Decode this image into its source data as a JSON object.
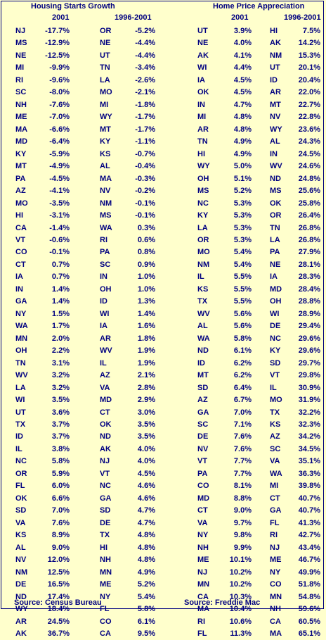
{
  "titles": {
    "housing": "Housing Starts Growth",
    "price": "Home Price Appreciation"
  },
  "subheaders": {
    "h2001": "2001",
    "h9601": "1996-2001",
    "p2001": "2001",
    "p9601": "1996-2001"
  },
  "sources": {
    "housing": "Source: Census Bureau",
    "price": "Source: Freddie Mac"
  },
  "rows": [
    [
      "NJ",
      "-17.7%",
      "OR",
      "-5.2%",
      "UT",
      "3.9%",
      "HI",
      "7.5%"
    ],
    [
      "MS",
      "-12.9%",
      "NE",
      "-4.4%",
      "NE",
      "4.0%",
      "AK",
      "14.2%"
    ],
    [
      "NE",
      "-12.5%",
      "UT",
      "-4.4%",
      "AK",
      "4.1%",
      "NM",
      "15.3%"
    ],
    [
      "MI",
      "-9.9%",
      "TN",
      "-3.4%",
      "WI",
      "4.4%",
      "UT",
      "20.1%"
    ],
    [
      "RI",
      "-9.6%",
      "LA",
      "-2.6%",
      "IA",
      "4.5%",
      "ID",
      "20.4%"
    ],
    [
      "SC",
      "-8.0%",
      "MO",
      "-2.1%",
      "OK",
      "4.5%",
      "AR",
      "22.0%"
    ],
    [
      "NH",
      "-7.6%",
      "MI",
      "-1.8%",
      "IN",
      "4.7%",
      "MT",
      "22.7%"
    ],
    [
      "ME",
      "-7.0%",
      "WY",
      "-1.7%",
      "MI",
      "4.8%",
      "NV",
      "22.8%"
    ],
    [
      "MA",
      "-6.6%",
      "MT",
      "-1.7%",
      "AR",
      "4.8%",
      "WY",
      "23.6%"
    ],
    [
      "MD",
      "-6.4%",
      "KY",
      "-1.1%",
      "TN",
      "4.9%",
      "AL",
      "24.3%"
    ],
    [
      "KY",
      "-5.9%",
      "KS",
      "-0.7%",
      "HI",
      "4.9%",
      "IN",
      "24.5%"
    ],
    [
      "MT",
      "-4.9%",
      "AL",
      "-0.4%",
      "WY",
      "5.0%",
      "WV",
      "24.6%"
    ],
    [
      "PA",
      "-4.5%",
      "MA",
      "-0.3%",
      "OH",
      "5.1%",
      "ND",
      "24.8%"
    ],
    [
      "AZ",
      "-4.1%",
      "NV",
      "-0.2%",
      "MS",
      "5.2%",
      "MS",
      "25.6%"
    ],
    [
      "MO",
      "-3.5%",
      "NM",
      "-0.1%",
      "NC",
      "5.3%",
      "OK",
      "25.8%"
    ],
    [
      "HI",
      "-3.1%",
      "MS",
      "-0.1%",
      "KY",
      "5.3%",
      "OR",
      "26.4%"
    ],
    [
      "CA",
      "-1.4%",
      "WA",
      "0.3%",
      "LA",
      "5.3%",
      "TN",
      "26.8%"
    ],
    [
      "VT",
      "-0.6%",
      "RI",
      "0.6%",
      "OR",
      "5.3%",
      "LA",
      "26.8%"
    ],
    [
      "CO",
      "-0.1%",
      "PA",
      "0.8%",
      "MO",
      "5.4%",
      "PA",
      "27.9%"
    ],
    [
      "CT",
      "0.7%",
      "SC",
      "0.9%",
      "NM",
      "5.4%",
      "NE",
      "28.1%"
    ],
    [
      "IA",
      "0.7%",
      "IN",
      "1.0%",
      "IL",
      "5.5%",
      "IA",
      "28.3%"
    ],
    [
      "IN",
      "1.4%",
      "OH",
      "1.0%",
      "KS",
      "5.5%",
      "MD",
      "28.4%"
    ],
    [
      "GA",
      "1.4%",
      "ID",
      "1.3%",
      "TX",
      "5.5%",
      "OH",
      "28.8%"
    ],
    [
      "NY",
      "1.5%",
      "WI",
      "1.4%",
      "WV",
      "5.6%",
      "WI",
      "28.9%"
    ],
    [
      "WA",
      "1.7%",
      "IA",
      "1.6%",
      "AL",
      "5.6%",
      "DE",
      "29.4%"
    ],
    [
      "MN",
      "2.0%",
      "AR",
      "1.8%",
      "WA",
      "5.8%",
      "NC",
      "29.6%"
    ],
    [
      "OH",
      "2.2%",
      "WV",
      "1.9%",
      "ND",
      "6.1%",
      "KY",
      "29.6%"
    ],
    [
      "TN",
      "3.1%",
      "IL",
      "1.9%",
      "ID",
      "6.2%",
      "SD",
      "29.7%"
    ],
    [
      "WV",
      "3.2%",
      "AZ",
      "2.1%",
      "MT",
      "6.2%",
      "VT",
      "29.8%"
    ],
    [
      "LA",
      "3.2%",
      "VA",
      "2.8%",
      "SD",
      "6.4%",
      "IL",
      "30.9%"
    ],
    [
      "WI",
      "3.5%",
      "MD",
      "2.9%",
      "AZ",
      "6.7%",
      "MO",
      "31.9%"
    ],
    [
      "UT",
      "3.6%",
      "CT",
      "3.0%",
      "GA",
      "7.0%",
      "TX",
      "32.2%"
    ],
    [
      "TX",
      "3.7%",
      "OK",
      "3.5%",
      "SC",
      "7.1%",
      "KS",
      "32.3%"
    ],
    [
      "ID",
      "3.7%",
      "ND",
      "3.5%",
      "DE",
      "7.6%",
      "AZ",
      "34.2%"
    ],
    [
      "IL",
      "3.8%",
      "AK",
      "4.0%",
      "NV",
      "7.6%",
      "SC",
      "34.5%"
    ],
    [
      "NC",
      "5.8%",
      "NJ",
      "4.0%",
      "VT",
      "7.7%",
      "VA",
      "35.1%"
    ],
    [
      "OR",
      "5.9%",
      "VT",
      "4.5%",
      "PA",
      "7.7%",
      "WA",
      "36.3%"
    ],
    [
      "FL",
      "6.0%",
      "NC",
      "4.6%",
      "CO",
      "8.1%",
      "MI",
      "39.8%"
    ],
    [
      "OK",
      "6.6%",
      "GA",
      "4.6%",
      "MD",
      "8.8%",
      "CT",
      "40.7%"
    ],
    [
      "SD",
      "7.0%",
      "SD",
      "4.7%",
      "CT",
      "9.0%",
      "GA",
      "40.7%"
    ],
    [
      "VA",
      "7.6%",
      "DE",
      "4.7%",
      "VA",
      "9.7%",
      "FL",
      "41.3%"
    ],
    [
      "KS",
      "8.9%",
      "TX",
      "4.8%",
      "NY",
      "9.8%",
      "RI",
      "42.7%"
    ],
    [
      "AL",
      "9.0%",
      "HI",
      "4.8%",
      "NH",
      "9.9%",
      "NJ",
      "43.4%"
    ],
    [
      "NV",
      "12.0%",
      "NH",
      "4.8%",
      "ME",
      "10.1%",
      "ME",
      "46.7%"
    ],
    [
      "NM",
      "12.5%",
      "MN",
      "4.9%",
      "NJ",
      "10.2%",
      "NY",
      "49.9%"
    ],
    [
      "DE",
      "16.5%",
      "ME",
      "5.2%",
      "MN",
      "10.2%",
      "CO",
      "51.8%"
    ],
    [
      "ND",
      "17.4%",
      "NY",
      "5.4%",
      "CA",
      "10.3%",
      "MN",
      "54.8%"
    ],
    [
      "WY",
      "18.4%",
      "FL",
      "5.8%",
      "MA",
      "10.4%",
      "NH",
      "59.6%"
    ],
    [
      "AR",
      "24.5%",
      "CO",
      "6.1%",
      "RI",
      "10.6%",
      "CA",
      "60.5%"
    ],
    [
      "AK",
      "36.7%",
      "CA",
      "9.5%",
      "FL",
      "11.3%",
      "MA",
      "65.1%"
    ]
  ]
}
